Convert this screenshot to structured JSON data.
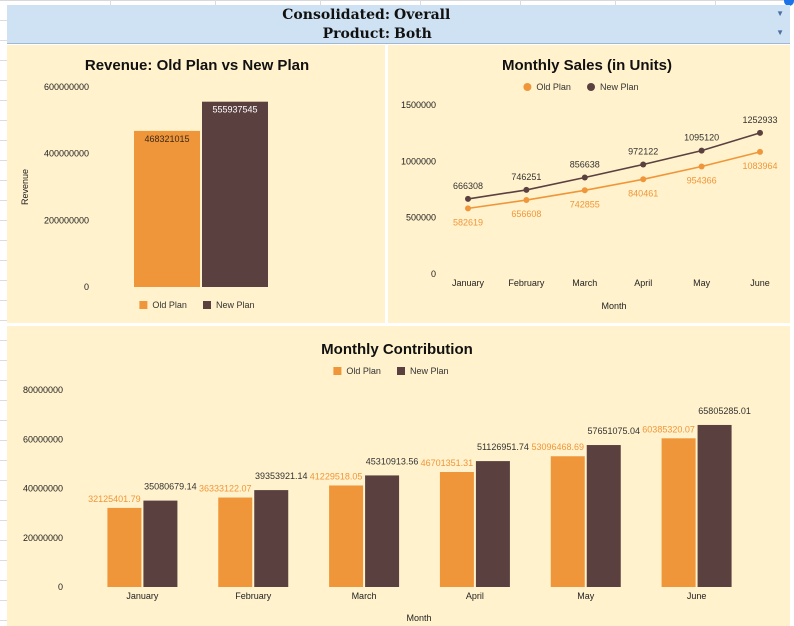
{
  "header": {
    "rows": [
      {
        "label": "Consolidated:",
        "value": "Overall"
      },
      {
        "label": "Product:",
        "value": "Both"
      }
    ]
  },
  "colors": {
    "old": "#f0963a",
    "new": "#5b4040",
    "panel": "#fff2cc",
    "header": "#cfe2f3"
  },
  "chart_data": [
    {
      "type": "bar",
      "title": "Revenue: Old Plan vs New Plan",
      "ylabel": "Revenue",
      "xlabel": "",
      "ylim": [
        0,
        600000000
      ],
      "yticks": [
        "0",
        "200000000",
        "400000000",
        "600000000"
      ],
      "legend": "bottom",
      "series": [
        {
          "name": "Old Plan",
          "values": [
            468321015
          ],
          "labels": [
            "468321015"
          ]
        },
        {
          "name": "New Plan",
          "values": [
            555937545
          ],
          "labels": [
            "555937545"
          ]
        }
      ]
    },
    {
      "type": "line",
      "title": "Monthly Sales (in Units)",
      "xlabel": "Month",
      "ylabel": "",
      "ylim": [
        0,
        1500000
      ],
      "yticks": [
        "0",
        "500000",
        "1000000",
        "1500000"
      ],
      "categories": [
        "January",
        "February",
        "March",
        "April",
        "May",
        "June"
      ],
      "legend": "top",
      "series": [
        {
          "name": "Old Plan",
          "values": [
            582619,
            656608,
            742855,
            840461,
            954366,
            1083964
          ],
          "labels": [
            "582619",
            "656608",
            "742855",
            "840461",
            "954366",
            "1083964"
          ]
        },
        {
          "name": "New Plan",
          "values": [
            666308,
            746251,
            856638,
            972122,
            1095120,
            1252933
          ],
          "labels": [
            "666308",
            "746251",
            "856638",
            "972122",
            "1095120",
            "1252933"
          ]
        }
      ]
    },
    {
      "type": "bar",
      "title": "Monthly Contribution",
      "xlabel": "Month",
      "ylabel": "",
      "ylim": [
        0,
        80000000
      ],
      "yticks": [
        "0",
        "20000000",
        "40000000",
        "60000000",
        "80000000"
      ],
      "categories": [
        "January",
        "February",
        "March",
        "April",
        "May",
        "June"
      ],
      "legend": "top",
      "series": [
        {
          "name": "Old Plan",
          "values": [
            32125401.79,
            36333122.07,
            41229518.05,
            46701351.31,
            53096468.69,
            60385320.07
          ],
          "labels": [
            "32125401.79",
            "36333122.07",
            "41229518.05",
            "46701351.31",
            "53096468.69",
            "60385320.07"
          ]
        },
        {
          "name": "New Plan",
          "values": [
            35080679.14,
            39353921.14,
            45310913.56,
            51126951.74,
            57651075.04,
            65805285.01
          ],
          "labels": [
            "35080679.14",
            "39353921.14",
            "45310913.56",
            "51126951.74",
            "57651075.04",
            "65805285.01"
          ]
        }
      ]
    }
  ]
}
